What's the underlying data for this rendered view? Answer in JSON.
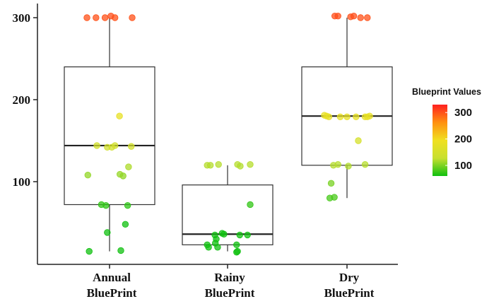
{
  "chart_data": {
    "type": "boxplot",
    "title": "",
    "xlabel": "",
    "ylabel": "",
    "ylim": [
      0,
      310
    ],
    "yticks": [
      100,
      200,
      300
    ],
    "categories": [
      {
        "line1": "Annual",
        "line2": "BluePrint"
      },
      {
        "line1": "Rainy",
        "line2": "BluePrint"
      },
      {
        "line1": "Dry",
        "line2": "BluePrint"
      }
    ],
    "boxes": [
      {
        "category": "Annual BluePrint",
        "whisker_low": 15,
        "q1": 72,
        "median": 144,
        "q3": 240,
        "whisker_high": 300
      },
      {
        "category": "Rainy BluePrint",
        "whisker_low": 15,
        "q1": 23,
        "median": 36,
        "q3": 96,
        "whisker_high": 120
      },
      {
        "category": "Dry BluePrint",
        "whisker_low": 80,
        "q1": 120,
        "median": 180,
        "q3": 240,
        "whisker_high": 300
      }
    ],
    "points": [
      [
        {
          "dx": -0.5,
          "y": 300
        },
        {
          "dx": -0.3,
          "y": 300
        },
        {
          "dx": -0.1,
          "y": 300
        },
        {
          "dx": 0.03,
          "y": 302
        },
        {
          "dx": 0.12,
          "y": 300
        },
        {
          "dx": 0.5,
          "y": 300
        },
        {
          "dx": 0.22,
          "y": 180
        },
        {
          "dx": -0.28,
          "y": 144
        },
        {
          "dx": -0.05,
          "y": 142
        },
        {
          "dx": 0.05,
          "y": 142
        },
        {
          "dx": 0.12,
          "y": 144
        },
        {
          "dx": 0.48,
          "y": 143
        },
        {
          "dx": 0.42,
          "y": 118
        },
        {
          "dx": -0.48,
          "y": 108
        },
        {
          "dx": 0.23,
          "y": 109
        },
        {
          "dx": 0.3,
          "y": 107
        },
        {
          "dx": -0.18,
          "y": 72
        },
        {
          "dx": -0.08,
          "y": 71
        },
        {
          "dx": 0.4,
          "y": 71
        },
        {
          "dx": 0.35,
          "y": 48
        },
        {
          "dx": -0.05,
          "y": 38
        },
        {
          "dx": -0.45,
          "y": 15
        },
        {
          "dx": 0.25,
          "y": 16
        }
      ],
      [
        {
          "dx": -0.45,
          "y": 120
        },
        {
          "dx": -0.38,
          "y": 120
        },
        {
          "dx": -0.2,
          "y": 121
        },
        {
          "dx": 0.22,
          "y": 121
        },
        {
          "dx": 0.28,
          "y": 119
        },
        {
          "dx": 0.5,
          "y": 121
        },
        {
          "dx": 0.5,
          "y": 72
        },
        {
          "dx": -0.28,
          "y": 35
        },
        {
          "dx": -0.12,
          "y": 37
        },
        {
          "dx": -0.08,
          "y": 36
        },
        {
          "dx": 0.27,
          "y": 35
        },
        {
          "dx": 0.44,
          "y": 35
        },
        {
          "dx": -0.25,
          "y": 30
        },
        {
          "dx": -0.27,
          "y": 25
        },
        {
          "dx": -0.45,
          "y": 23
        },
        {
          "dx": -0.42,
          "y": 20
        },
        {
          "dx": -0.22,
          "y": 20
        },
        {
          "dx": 0.2,
          "y": 23
        },
        {
          "dx": 0.2,
          "y": 14
        },
        {
          "dx": 0.22,
          "y": 15
        }
      ],
      [
        {
          "dx": -0.27,
          "y": 302
        },
        {
          "dx": -0.2,
          "y": 302
        },
        {
          "dx": 0.08,
          "y": 301
        },
        {
          "dx": 0.15,
          "y": 302
        },
        {
          "dx": 0.3,
          "y": 300
        },
        {
          "dx": 0.45,
          "y": 300
        },
        {
          "dx": -0.5,
          "y": 181
        },
        {
          "dx": -0.45,
          "y": 180
        },
        {
          "dx": -0.4,
          "y": 179
        },
        {
          "dx": -0.15,
          "y": 179
        },
        {
          "dx": 0.0,
          "y": 179
        },
        {
          "dx": 0.2,
          "y": 179
        },
        {
          "dx": 0.4,
          "y": 179
        },
        {
          "dx": 0.45,
          "y": 179
        },
        {
          "dx": 0.5,
          "y": 180
        },
        {
          "dx": 0.25,
          "y": 150
        },
        {
          "dx": -0.3,
          "y": 120
        },
        {
          "dx": -0.2,
          "y": 121
        },
        {
          "dx": 0.03,
          "y": 119
        },
        {
          "dx": 0.4,
          "y": 121
        },
        {
          "dx": -0.35,
          "y": 98
        },
        {
          "dx": -0.38,
          "y": 80
        },
        {
          "dx": -0.28,
          "y": 81
        }
      ]
    ],
    "legend": {
      "title": "Blueprint Values",
      "position": "right",
      "ticks": [
        100,
        200,
        300
      ],
      "min": 60,
      "max": 330,
      "colors": [
        "#10c010",
        "#c8e030",
        "#f0e020",
        "#ff9010",
        "#ff2020"
      ]
    }
  }
}
